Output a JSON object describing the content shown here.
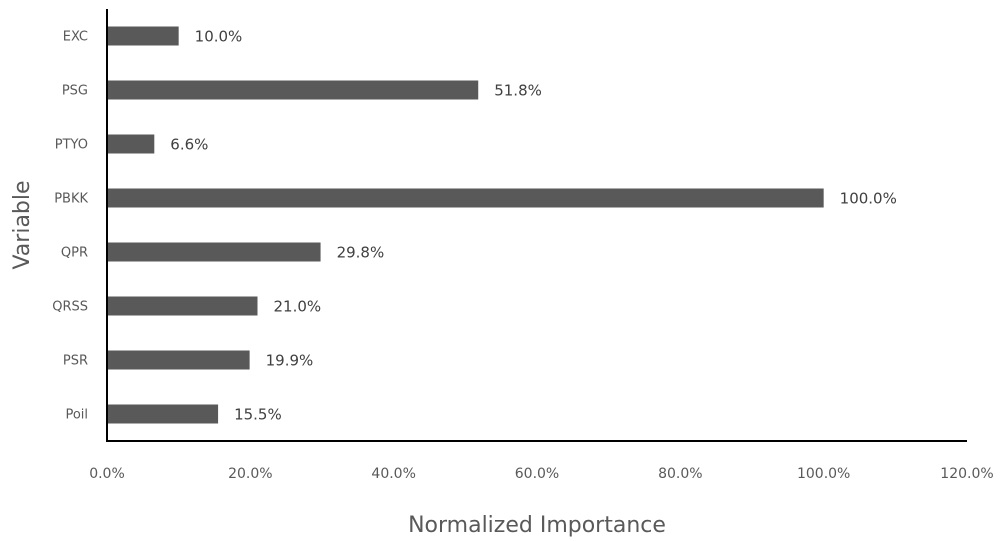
{
  "chart_data": {
    "type": "bar",
    "orientation": "horizontal",
    "categories": [
      "EXC",
      "PSG",
      "PTYO",
      "PBKK",
      "QPR",
      "QRSS",
      "PSR",
      "Poil"
    ],
    "values": [
      10.0,
      51.8,
      6.6,
      100.0,
      29.8,
      21.0,
      19.9,
      15.5
    ],
    "data_labels": [
      "10.0%",
      "51.8%",
      "6.6%",
      "100.0%",
      "29.8%",
      "21.0%",
      "19.9%",
      "15.5%"
    ],
    "xlabel": "Normalized Importance",
    "ylabel": "Variable",
    "xlim": [
      0,
      120
    ],
    "x_ticks": [
      0,
      20,
      40,
      60,
      80,
      100,
      120
    ],
    "x_tick_labels": [
      "0.0%",
      "20.0%",
      "40.0%",
      "60.0%",
      "80.0%",
      "100.0%",
      "120.0%"
    ],
    "grid": false,
    "legend": "none",
    "bar_color": "#595959"
  }
}
